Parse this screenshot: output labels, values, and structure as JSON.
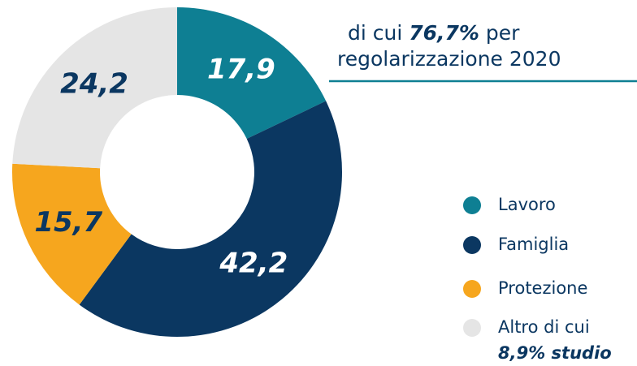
{
  "chart_data": {
    "type": "donut",
    "categories": [
      "Lavoro",
      "Famiglia",
      "Protezione",
      "Altro di cui"
    ],
    "legend_note": "8,9% studio",
    "values": [
      17.9,
      42.2,
      15.7,
      24.2
    ],
    "value_labels": [
      "17,9",
      "42,2",
      "15,7",
      "24,2"
    ],
    "colors": [
      "#0e7f93",
      "#0b3761",
      "#f6a61e",
      "#e5e5e5"
    ],
    "label_colors": [
      "#ffffff",
      "#ffffff",
      "#0b3761",
      "#0b3761"
    ],
    "annotation": {
      "pre": "di cui ",
      "bold": "76,7%",
      "post": " per",
      "line2": "regolarizzazione 2020"
    },
    "legend": "right"
  }
}
